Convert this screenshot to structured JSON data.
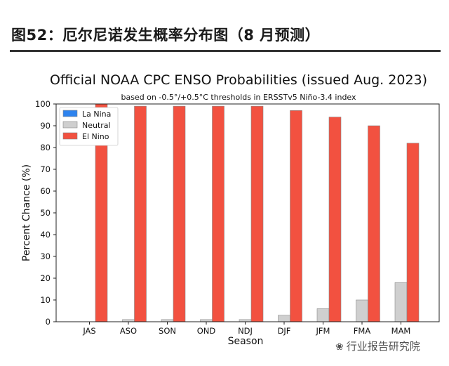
{
  "header": {
    "figure_title": "图52：厄尔尼诺发生概率分布图（8 月预测）"
  },
  "watermark": {
    "text": "行业报告研究院",
    "icon": "wechat-icon"
  },
  "chart_data": {
    "type": "bar",
    "title": "Official NOAA CPC ENSO Probabilities (issued Aug. 2023)",
    "subtitle": "based on -0.5°/+0.5°C thresholds in ERSSTv5 Niño-3.4 index",
    "xlabel": "Season",
    "ylabel": "Percent Chance (%)",
    "ylim": [
      0,
      100
    ],
    "yticks": [
      0,
      10,
      20,
      30,
      40,
      50,
      60,
      70,
      80,
      90,
      100
    ],
    "grid": false,
    "legend_position": "top-left",
    "categories": [
      "JAS",
      "ASO",
      "SON",
      "OND",
      "NDJ",
      "DJF",
      "JFM",
      "FMA",
      "MAM"
    ],
    "series": [
      {
        "name": "La Nina",
        "color": "#2e83ee",
        "values": [
          0,
          0,
          0,
          0,
          0,
          0,
          0,
          0,
          0
        ]
      },
      {
        "name": "Neutral",
        "color": "#cfcfcf",
        "values": [
          0,
          1,
          1,
          1,
          1,
          3,
          6,
          10,
          18
        ]
      },
      {
        "name": "El Nino",
        "color": "#f25140",
        "values": [
          100,
          99,
          99,
          99,
          99,
          97,
          94,
          90,
          82
        ]
      }
    ]
  }
}
